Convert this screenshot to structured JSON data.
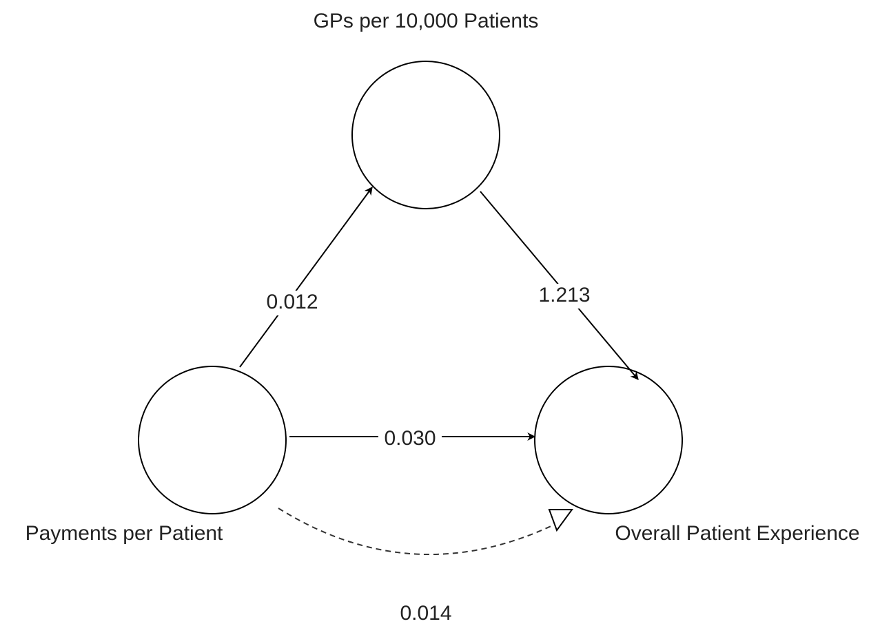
{
  "nodes": [
    {
      "label": "GPs per 10,000 Patients"
    },
    {
      "label": "Payments per Patient"
    },
    {
      "label": "Overall Patient Experience"
    }
  ],
  "edges": [
    {
      "label": "0.012"
    },
    {
      "label": "1.213"
    },
    {
      "label": "0.030"
    },
    {
      "label": "0.014"
    }
  ]
}
